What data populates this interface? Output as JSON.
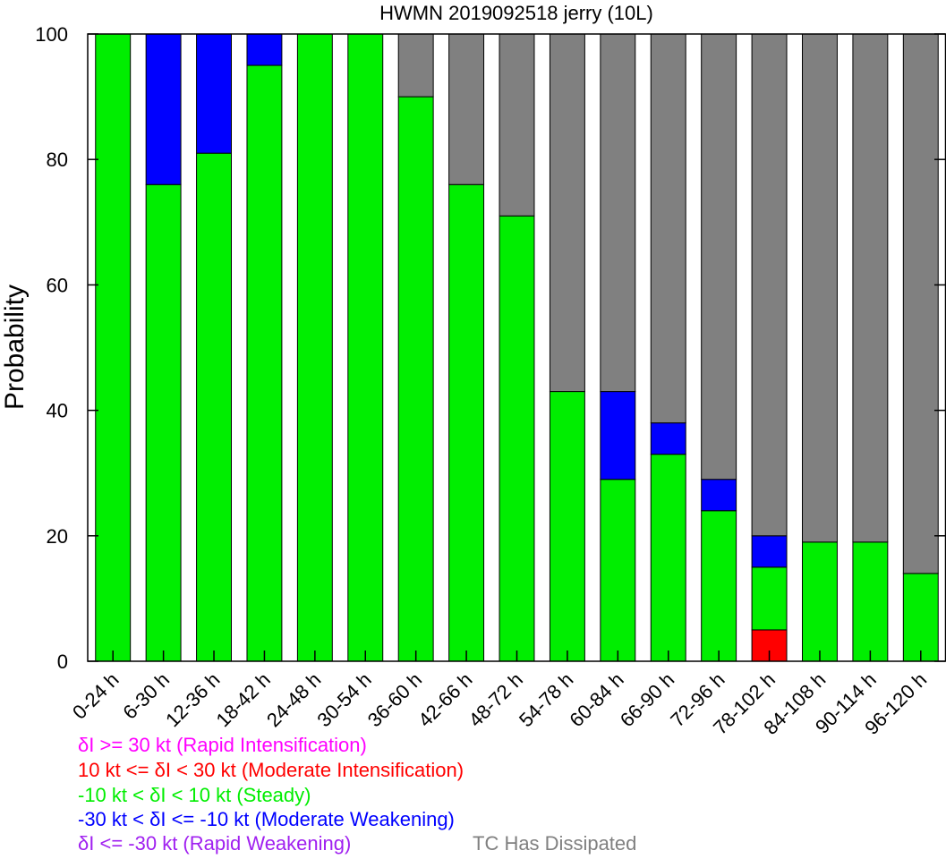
{
  "chart_data": {
    "type": "bar",
    "stacked": true,
    "title": "HWMN 2019092518 jerry (10L)",
    "ylabel": "Probability",
    "xlabel": "",
    "ylim": [
      0,
      100
    ],
    "yticks": [
      0,
      20,
      40,
      60,
      80,
      100
    ],
    "categories": [
      "0-24 h",
      "6-30 h",
      "12-36 h",
      "18-42 h",
      "24-48 h",
      "30-54 h",
      "36-60 h",
      "42-66 h",
      "48-72 h",
      "54-78 h",
      "60-84 h",
      "66-90 h",
      "72-96 h",
      "78-102 h",
      "84-108 h",
      "90-114 h",
      "96-120 h"
    ],
    "series": [
      {
        "name": "δI <= -30 kt (Rapid Weakening)",
        "color": "#a020f0",
        "values": [
          0,
          0,
          0,
          0,
          0,
          0,
          0,
          0,
          0,
          0,
          0,
          0,
          0,
          0,
          0,
          0,
          0
        ]
      },
      {
        "name": "δI >= 30 kt (Rapid Intensification)",
        "color": "#ff00ff",
        "values": [
          0,
          0,
          0,
          0,
          0,
          0,
          0,
          0,
          0,
          0,
          0,
          0,
          0,
          0,
          0,
          0,
          0
        ]
      },
      {
        "name": "10 kt <= δI < 30 kt (Moderate Intensification)",
        "color": "#ff0000",
        "values": [
          0,
          0,
          0,
          0,
          0,
          0,
          0,
          0,
          0,
          0,
          0,
          0,
          0,
          5,
          0,
          0,
          0
        ]
      },
      {
        "name": "-10 kt < δI < 10 kt (Steady)",
        "color": "#00ee00",
        "values": [
          100,
          76,
          81,
          95,
          100,
          100,
          90,
          76,
          71,
          43,
          29,
          33,
          24,
          10,
          19,
          19,
          14
        ]
      },
      {
        "name": "-30 kt < δI <= -10 kt (Moderate Weakening)",
        "color": "#0000ff",
        "values": [
          0,
          24,
          19,
          5,
          0,
          0,
          0,
          0,
          0,
          0,
          14,
          5,
          5,
          5,
          0,
          0,
          0
        ]
      },
      {
        "name": "TC Has Dissipated",
        "color": "#808080",
        "values": [
          0,
          0,
          0,
          0,
          0,
          0,
          10,
          24,
          29,
          57,
          57,
          62,
          71,
          80,
          81,
          81,
          86
        ]
      }
    ],
    "legend": [
      {
        "text": "δI >= 30 kt (Rapid Intensification)",
        "color": "#ff00ff"
      },
      {
        "text": "10 kt <= δI < 30 kt (Moderate Intensification)",
        "color": "#ff0000"
      },
      {
        "text": "-10 kt < δI < 10 kt (Steady)",
        "color": "#00ee00"
      },
      {
        "text": "-30 kt < δI <= -10 kt (Moderate Weakening)",
        "color": "#0000ff"
      },
      {
        "text": "δI <= -30 kt (Rapid Weakening)",
        "color": "#a020f0"
      },
      {
        "text": "TC Has Dissipated",
        "color": "#808080"
      }
    ],
    "legend_placement": "bottom",
    "grid": false
  }
}
